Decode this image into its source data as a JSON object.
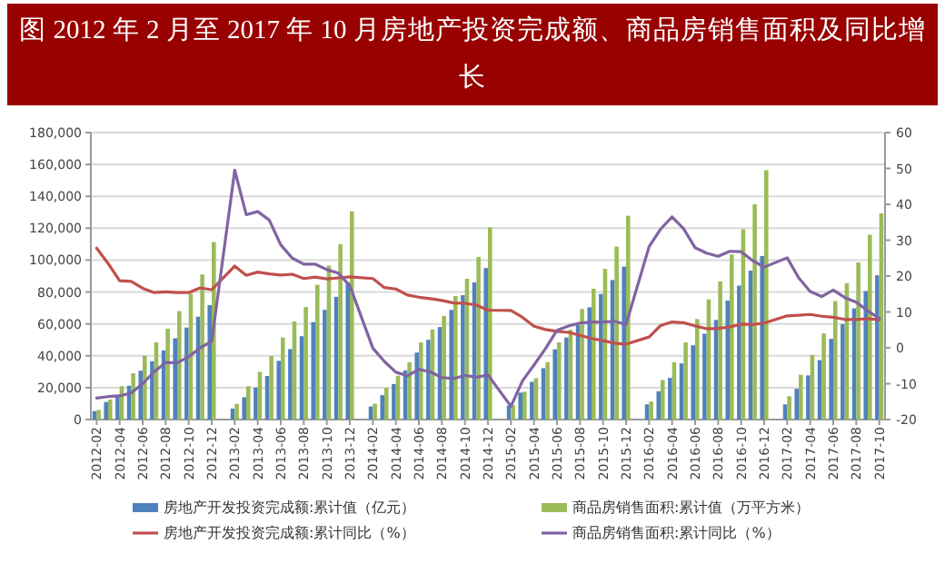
{
  "chart_data": {
    "type": "bar",
    "title": "图 2012 年 2 月至 2017 年 10 月房地产投资完成额、商品房销售面积及同比增长",
    "categories": [
      "2012-02",
      null,
      "2012-04",
      null,
      "2012-06",
      null,
      "2012-08",
      null,
      "2012-10",
      null,
      "2012-12",
      null,
      "2013-02",
      null,
      "2013-04",
      null,
      "2013-06",
      null,
      "2013-08",
      null,
      "2013-10",
      null,
      "2013-12",
      null,
      "2014-02",
      null,
      "2014-04",
      null,
      "2014-06",
      null,
      "2014-08",
      null,
      "2014-10",
      null,
      "2014-12",
      null,
      "2015-02",
      null,
      "2015-04",
      null,
      "2015-06",
      null,
      "2015-08",
      null,
      "2015-10",
      null,
      "2015-12",
      null,
      "2016-02",
      null,
      "2016-04",
      null,
      "2016-06",
      null,
      "2016-08",
      null,
      "2016-10",
      null,
      "2016-12",
      null,
      "2017-02",
      null,
      "2017-04",
      null,
      "2017-06",
      null,
      "2017-08",
      null,
      "2017-10"
    ],
    "series": [
      {
        "name": "房地产开发投资完成额:累计值（亿元）",
        "axis": "y",
        "color": "#4f81bd",
        "values": [
          5300,
          11000,
          15200,
          21200,
          30600,
          36600,
          43400,
          51000,
          57700,
          64500,
          71800,
          null,
          6900,
          14000,
          20100,
          27300,
          36800,
          44200,
          52300,
          61100,
          68800,
          77000,
          86000,
          null,
          8200,
          15300,
          22300,
          30800,
          42000,
          50000,
          58000,
          68800,
          78000,
          86000,
          95000,
          null,
          8800,
          16900,
          23700,
          32200,
          44000,
          51500,
          59200,
          70400,
          78800,
          87500,
          96000,
          null,
          9500,
          17700,
          26100,
          35200,
          46600,
          53800,
          62500,
          74600,
          84000,
          93400,
          102600,
          null,
          9500,
          19300,
          27700,
          37300,
          50600,
          59800,
          69700,
          80600,
          90500
        ]
      },
      {
        "name": "商品房销售面积:累计值（万平方米）",
        "axis": "y",
        "color": "#9bbb59",
        "values": [
          6000,
          12500,
          21000,
          29000,
          40000,
          48500,
          57000,
          68000,
          79000,
          91000,
          111300,
          null,
          9850,
          20900,
          29900,
          39800,
          51500,
          61500,
          70600,
          84500,
          96600,
          110000,
          130600,
          null,
          10000,
          19900,
          27500,
          36000,
          48400,
          56500,
          65000,
          77500,
          88300,
          102000,
          120600,
          null,
          9000,
          17500,
          25900,
          36000,
          48400,
          56300,
          69300,
          82100,
          94500,
          108500,
          127800,
          null,
          11300,
          24800,
          36000,
          48400,
          63000,
          75400,
          86600,
          103500,
          119300,
          135000,
          156400,
          null,
          14600,
          28100,
          40500,
          54000,
          74300,
          85500,
          98600,
          115900,
          129400
        ]
      },
      {
        "name": "房地产开发投资完成额:累计同比（%）",
        "type": "line",
        "axis": "y2",
        "color": "#c0504d",
        "values": [
          27.8,
          23.5,
          18.7,
          18.5,
          16.6,
          15.4,
          15.6,
          15.4,
          15.4,
          16.7,
          16.2,
          null,
          22.8,
          20.2,
          21.1,
          20.6,
          20.3,
          20.5,
          19.3,
          19.7,
          19.2,
          19.5,
          19.8,
          null,
          19.3,
          16.8,
          16.4,
          14.7,
          14.1,
          13.7,
          13.2,
          12.5,
          12.4,
          11.9,
          10.5,
          null,
          10.4,
          8.5,
          6.0,
          5.1,
          4.6,
          4.3,
          3.5,
          2.6,
          2.0,
          1.3,
          1.0,
          null,
          3.0,
          6.2,
          7.2,
          7.0,
          6.1,
          5.3,
          5.4,
          5.8,
          6.6,
          6.5,
          6.9,
          null,
          8.9,
          9.1,
          9.3,
          8.8,
          8.5,
          7.9,
          7.9,
          8.1,
          7.8
        ]
      },
      {
        "name": "商品房销售面积:累计同比（%）",
        "type": "line",
        "axis": "y2",
        "color": "#8064a2",
        "values": [
          -14.0,
          -13.6,
          -13.4,
          -12.6,
          -10.0,
          -6.7,
          -4.1,
          -4.2,
          -2.5,
          0.0,
          1.8,
          null,
          49.5,
          37.1,
          38.0,
          35.6,
          28.7,
          25.0,
          23.3,
          23.3,
          21.8,
          20.8,
          17.3,
          null,
          -0.1,
          -3.8,
          -6.8,
          -7.8,
          -6.0,
          -6.7,
          -8.3,
          -8.6,
          -7.7,
          -8.2,
          -7.6,
          null,
          -16.3,
          -9.2,
          -4.8,
          -0.2,
          4.9,
          6.1,
          6.9,
          7.2,
          7.2,
          7.4,
          6.5,
          null,
          28.2,
          33.1,
          36.5,
          33.2,
          27.9,
          26.4,
          25.5,
          26.9,
          26.8,
          24.3,
          22.5,
          null,
          25.1,
          19.5,
          15.7,
          14.3,
          16.1,
          14.0,
          12.7,
          10.3,
          8.2
        ]
      }
    ],
    "ylim": [
      0,
      180000
    ],
    "yticks": [
      0,
      {
        "value": 20000,
        "label": "20,000"
      },
      {
        "value": 40000,
        "label": "40,000"
      },
      {
        "value": 60000,
        "label": "60,000"
      },
      {
        "value": 80000,
        "label": "80,000"
      },
      {
        "value": 100000,
        "label": "100,000"
      },
      {
        "value": 120000,
        "label": "120,000"
      },
      {
        "value": 140000,
        "label": "140,000"
      },
      {
        "value": 160000,
        "label": "160,000"
      },
      {
        "value": 180000,
        "label": "180,000"
      }
    ],
    "y2lim": [
      -20,
      60
    ],
    "y2ticks": [
      -20,
      -10,
      0,
      10,
      20,
      30,
      40,
      50,
      60
    ],
    "grid": "y",
    "legend": "bottom",
    "marker": "none",
    "line_style": "solid"
  }
}
